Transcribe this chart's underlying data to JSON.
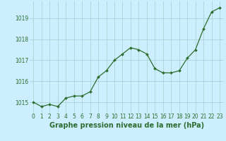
{
  "x": [
    0,
    1,
    2,
    3,
    4,
    5,
    6,
    7,
    8,
    9,
    10,
    11,
    12,
    13,
    14,
    15,
    16,
    17,
    18,
    19,
    20,
    21,
    22,
    23
  ],
  "y": [
    1015.0,
    1014.8,
    1014.9,
    1014.8,
    1015.2,
    1015.3,
    1015.3,
    1015.5,
    1016.2,
    1016.5,
    1017.0,
    1017.3,
    1017.6,
    1017.5,
    1017.3,
    1016.6,
    1016.4,
    1016.4,
    1016.5,
    1017.1,
    1017.5,
    1018.5,
    1019.3,
    1019.5
  ],
  "line_color": "#2d6e2d",
  "marker": "D",
  "marker_size": 2.0,
  "bg_color": "#cceeff",
  "grid_color": "#aad4d4",
  "xlabel": "Graphe pression niveau de la mer (hPa)",
  "xlabel_fontsize": 7,
  "ylabel_ticks": [
    1015,
    1016,
    1017,
    1018,
    1019
  ],
  "ylim": [
    1014.5,
    1019.8
  ],
  "xlim": [
    -0.5,
    23.5
  ],
  "xtick_labels": [
    "0",
    "1",
    "2",
    "3",
    "4",
    "5",
    "6",
    "7",
    "8",
    "9",
    "10",
    "11",
    "12",
    "13",
    "14",
    "15",
    "16",
    "17",
    "18",
    "19",
    "20",
    "21",
    "22",
    "23"
  ],
  "tick_fontsize": 5.5,
  "label_color": "#2d6e2d",
  "linewidth": 0.9
}
